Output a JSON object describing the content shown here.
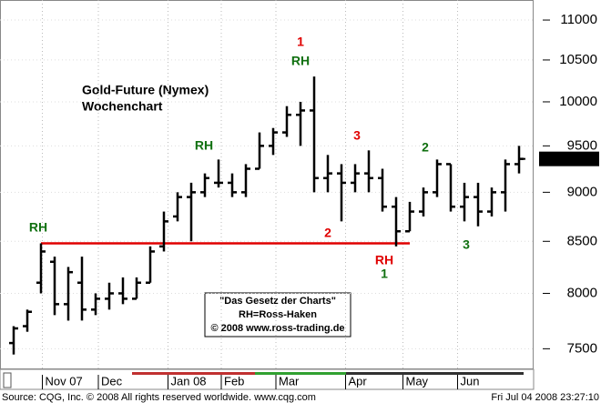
{
  "chart_data": {
    "type": "ohlc",
    "title": "Gold-Future (Nymex)",
    "subtitle": "Wochenchart",
    "log_scale": true,
    "grid": true,
    "color": "#000000",
    "x": [
      0,
      1,
      2,
      3,
      4,
      5,
      6,
      7,
      8,
      9,
      10,
      11,
      12,
      13,
      14,
      15,
      16,
      17,
      18,
      19,
      20,
      21,
      22,
      23,
      24,
      25,
      26,
      27,
      28,
      29,
      30,
      31,
      32,
      33,
      34,
      35,
      36,
      37
    ],
    "ohlc": [
      [
        7550,
        7700,
        7450,
        7680
      ],
      [
        7700,
        7850,
        7650,
        7830
      ],
      [
        8100,
        8480,
        8000,
        8400
      ],
      [
        8300,
        8350,
        7800,
        7900
      ],
      [
        7900,
        8250,
        7750,
        8200
      ],
      [
        8100,
        8350,
        7750,
        7850
      ],
      [
        7850,
        8000,
        7800,
        7950
      ],
      [
        7950,
        8100,
        7850,
        8000
      ],
      [
        8000,
        8150,
        7900,
        7950
      ],
      [
        7950,
        8150,
        7950,
        8100
      ],
      [
        8100,
        8450,
        8100,
        8400
      ],
      [
        8450,
        8800,
        8400,
        8700
      ],
      [
        8750,
        9000,
        8700,
        8950
      ],
      [
        8950,
        9100,
        8500,
        9000
      ],
      [
        9000,
        9200,
        8950,
        9150
      ],
      [
        9100,
        9350,
        9050,
        9100
      ],
      [
        9100,
        9200,
        8950,
        9000
      ],
      [
        9000,
        9300,
        8950,
        9250
      ],
      [
        9250,
        9650,
        9250,
        9500
      ],
      [
        9500,
        9700,
        9400,
        9650
      ],
      [
        9650,
        9950,
        9600,
        9850
      ],
      [
        9850,
        10000,
        9500,
        9900
      ],
      [
        9900,
        10300,
        9000,
        9150
      ],
      [
        9150,
        9400,
        9000,
        9200
      ],
      [
        9200,
        9300,
        8700,
        9100
      ],
      [
        9100,
        9300,
        9000,
        9200
      ],
      [
        9200,
        9450,
        9000,
        9150
      ],
      [
        9150,
        9250,
        8800,
        8850
      ],
      [
        8850,
        8950,
        8450,
        8600
      ],
      [
        8600,
        8900,
        8600,
        8800
      ],
      [
        8800,
        9050,
        8750,
        9000
      ],
      [
        9000,
        9350,
        8950,
        9300
      ],
      [
        9300,
        9300,
        8800,
        8850
      ],
      [
        8850,
        9100,
        8700,
        8950
      ],
      [
        8950,
        9100,
        8650,
        8800
      ],
      [
        8800,
        9050,
        8750,
        9000
      ],
      [
        9000,
        9350,
        8800,
        9300
      ],
      [
        9300,
        9500,
        9200,
        9357
      ]
    ],
    "xlim": [
      -1,
      38
    ],
    "ylim": [
      7330,
      11260
    ],
    "yticks": [
      7500,
      8000,
      8500,
      9000,
      9500,
      10000,
      10500,
      11000
    ],
    "xticks": [
      {
        "value": 2.1,
        "label": "Nov 07"
      },
      {
        "value": 6.2,
        "label": "Dec"
      },
      {
        "value": 11.3,
        "label": "Jan 08"
      },
      {
        "value": 15.2,
        "label": "Feb"
      },
      {
        "value": 19.2,
        "label": "Mar"
      },
      {
        "value": 24.3,
        "label": "Apr"
      },
      {
        "value": 28.5,
        "label": "May"
      },
      {
        "value": 32.5,
        "label": "Jun"
      }
    ],
    "support_line": {
      "value": 8480,
      "from": 2,
      "to": 29,
      "color": "#e00000"
    },
    "annotations": [
      {
        "text": "RH",
        "color": "#107010"
      },
      {
        "text": "RH",
        "color": "#107010"
      },
      {
        "text": "1",
        "color": "#e00000"
      },
      {
        "text": "RH",
        "color": "#107010"
      },
      {
        "text": "3",
        "color": "#e00000"
      },
      {
        "text": "2",
        "color": "#107010"
      },
      {
        "text": "2",
        "color": "#e00000"
      },
      {
        "text": "RH",
        "color": "#e00000"
      },
      {
        "text": "1",
        "color": "#107010"
      },
      {
        "text": "3",
        "color": "#107010"
      }
    ],
    "note_lines": [
      "\"Das Gesetz der Charts\"",
      "RH=Ross-Haken",
      "© 2008 www.ross-trading.de"
    ],
    "source": "Source: CQG, Inc. © 2008 All rights reserved worldwide. www.cqg.com",
    "timestamp": "Fri Jul 04 2008 23:27:10"
  }
}
